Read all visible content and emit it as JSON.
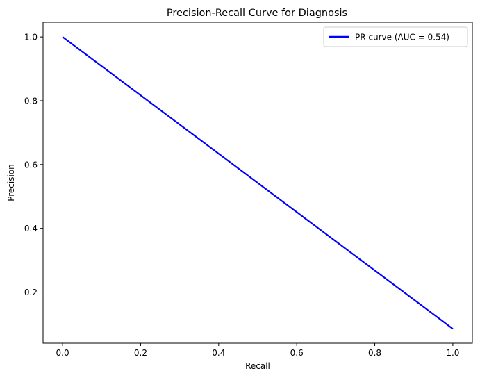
{
  "chart_data": {
    "type": "line",
    "title": "Precision-Recall Curve for Diagnosis",
    "xlabel": "Recall",
    "ylabel": "Precision",
    "xlim": [
      -0.05,
      1.05
    ],
    "ylim": [
      0.04,
      1.046
    ],
    "xticks": [
      {
        "value": 0.0,
        "label": "0.0"
      },
      {
        "value": 0.2,
        "label": "0.2"
      },
      {
        "value": 0.4,
        "label": "0.4"
      },
      {
        "value": 0.6,
        "label": "0.6"
      },
      {
        "value": 0.8,
        "label": "0.8"
      },
      {
        "value": 1.0,
        "label": "1.0"
      }
    ],
    "yticks": [
      {
        "value": 0.2,
        "label": "0.2"
      },
      {
        "value": 0.4,
        "label": "0.4"
      },
      {
        "value": 0.6,
        "label": "0.6"
      },
      {
        "value": 0.8,
        "label": "0.8"
      },
      {
        "value": 1.0,
        "label": "1.0"
      }
    ],
    "grid": false,
    "legend_position": "top-right",
    "series": [
      {
        "name": "PR curve (AUC = 0.54)",
        "color": "#0000ff",
        "x": [
          0.0,
          1.0
        ],
        "y": [
          1.0,
          0.085
        ]
      }
    ]
  }
}
